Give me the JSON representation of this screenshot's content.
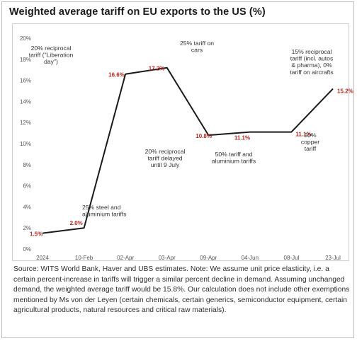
{
  "colors": {
    "line": "#1a1a1a",
    "data_label": "#b3261e",
    "grid": "#e6e6e6"
  },
  "chart_data": {
    "type": "line",
    "title": "Weighted average tariff on EU exports to the US (%)",
    "categories": [
      "2024",
      "10-Feb",
      "02-Apr",
      "03-Apr",
      "09-Apr",
      "04-Jun",
      "08-Jul",
      "23-Jul"
    ],
    "values": [
      1.5,
      2.0,
      16.6,
      17.2,
      10.8,
      11.1,
      11.1,
      15.2
    ],
    "data_labels": [
      "1.5%",
      "2.0%",
      "16.6%",
      "17.2%",
      "10.8%",
      "11.1%",
      "11.1%",
      "15.2%"
    ],
    "ylim": [
      0,
      20
    ],
    "yticks": [
      0,
      2,
      4,
      6,
      8,
      10,
      12,
      14,
      16,
      18,
      20
    ],
    "ytick_labels": [
      "0%",
      "2%",
      "4%",
      "6%",
      "8%",
      "10%",
      "12%",
      "14%",
      "16%",
      "18%",
      "20%"
    ],
    "xlabel": "",
    "ylabel": "",
    "grid": false,
    "annotations": [
      {
        "point": 1,
        "lines": [
          "25% steel and",
          "aluminium tariffs"
        ]
      },
      {
        "point": 2,
        "lines": [
          "20% reciprocal",
          "tariff (\"Liberation",
          "day\")"
        ]
      },
      {
        "point": 3,
        "lines": [
          "25% tariff on",
          "cars"
        ]
      },
      {
        "point": 4,
        "lines": [
          "20% reciprocal",
          "tariff delayed",
          "until 9 July"
        ]
      },
      {
        "point": 5,
        "lines": [
          "50% tariff and",
          "aluminium tariffs"
        ]
      },
      {
        "point": 6,
        "lines": [
          "50%",
          "copper",
          "tariff"
        ]
      },
      {
        "point": 7,
        "lines": [
          "15% reciprocal",
          "tariff (incl. autos",
          "& pharma), 0%",
          "tariff on aircrafts"
        ]
      }
    ]
  },
  "source_note": "Source: WITS World Bank, Haver and UBS estimates. Note: We assume unit price elasticity, i.e. a certain percent-increase in tariffs will trigger a similar percent decline in demand. Assuming unchanged demand, the weighted average tariff would be 15.8%. Our calculation does not include other exemptions mentioned by Ms von der Leyen (certain chemicals, certain generics, semiconductor equipment, certain agricultural products, natural resources and critical raw materials)."
}
